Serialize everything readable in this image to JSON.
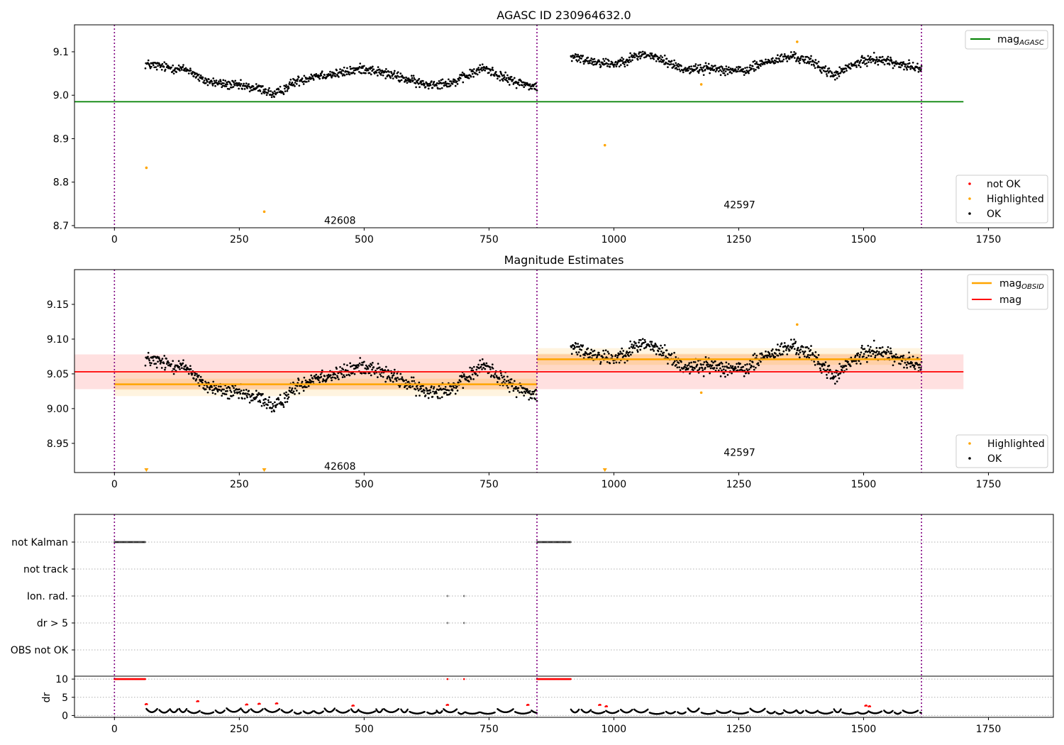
{
  "chart_data": [
    {
      "type": "scatter",
      "title": "AGASC ID 230964632.0",
      "xlim": [
        -80,
        1880
      ],
      "ylim": [
        8.695,
        9.162
      ],
      "xticks": [
        0,
        250,
        500,
        750,
        1000,
        1250,
        1500,
        1750
      ],
      "yticks": [
        8.7,
        8.8,
        8.9,
        9.0,
        9.1
      ],
      "ytick_labels": [
        "8.7",
        "8.8",
        "8.9",
        "9.0",
        "9.1"
      ],
      "obsid_boundaries": [
        0,
        846,
        1616
      ],
      "obsid_labels": [
        {
          "text": "42608",
          "x": 420,
          "y": 8.712
        },
        {
          "text": "42597",
          "x": 1220,
          "y": 8.748
        }
      ],
      "lines": [
        {
          "name": "mag_AGASC",
          "label_main": "mag",
          "label_sub": "AGASC",
          "y": 8.985,
          "x0": -80,
          "x1": 1700,
          "color": "#008000"
        }
      ],
      "legend_lines_position": "upper right",
      "legend_markers_position": "lower right",
      "legend_markers": [
        {
          "label": "not OK",
          "color": "#ff0000"
        },
        {
          "label": "Highlighted",
          "color": "#ffa500"
        },
        {
          "label": "OK",
          "color": "#000000"
        }
      ],
      "ok_points": {
        "color": "#000000",
        "segments": [
          {
            "x0": 62,
            "x1": 846,
            "knots": [
              [
                62,
                9.072
              ],
              [
                100,
                9.065
              ],
              [
                150,
                9.058
              ],
              [
                175,
                9.035
              ],
              [
                210,
                9.027
              ],
              [
                260,
                9.02
              ],
              [
                300,
                9.013
              ],
              [
                320,
                9.0
              ],
              [
                360,
                9.03
              ],
              [
                400,
                9.045
              ],
              [
                450,
                9.05
              ],
              [
                500,
                9.062
              ],
              [
                560,
                9.045
              ],
              [
                620,
                9.025
              ],
              [
                680,
                9.03
              ],
              [
                740,
                9.063
              ],
              [
                790,
                9.035
              ],
              [
                846,
                9.018
              ]
            ],
            "noise": 0.011
          },
          {
            "x0": 914,
            "x1": 1616,
            "knots": [
              [
                914,
                9.088
              ],
              [
                960,
                9.078
              ],
              [
                1000,
                9.072
              ],
              [
                1060,
                9.095
              ],
              [
                1100,
                9.08
              ],
              [
                1140,
                9.06
              ],
              [
                1200,
                9.062
              ],
              [
                1260,
                9.055
              ],
              [
                1300,
                9.075
              ],
              [
                1360,
                9.09
              ],
              [
                1400,
                9.075
              ],
              [
                1440,
                9.045
              ],
              [
                1480,
                9.07
              ],
              [
                1520,
                9.085
              ],
              [
                1580,
                9.07
              ],
              [
                1616,
                9.06
              ]
            ],
            "noise": 0.011
          }
        ]
      },
      "highlighted_points": [
        [
          64,
          8.833
        ],
        [
          300,
          8.732
        ],
        [
          982,
          8.885
        ],
        [
          1175,
          9.025
        ],
        [
          1367,
          9.123
        ]
      ]
    },
    {
      "type": "scatter",
      "title": "Magnitude Estimates",
      "xlim": [
        -80,
        1880
      ],
      "ylim": [
        8.908,
        9.2
      ],
      "xticks": [
        0,
        250,
        500,
        750,
        1000,
        1250,
        1500,
        1750
      ],
      "yticks": [
        8.95,
        9.0,
        9.05,
        9.1,
        9.15
      ],
      "ytick_labels": [
        "8.95",
        "9.00",
        "9.05",
        "9.10",
        "9.15"
      ],
      "obsid_boundaries": [
        0,
        846,
        1616
      ],
      "obsid_labels": [
        {
          "text": "42608",
          "x": 420,
          "y": 8.917
        },
        {
          "text": "42597",
          "x": 1220,
          "y": 8.937
        }
      ],
      "mag_band": {
        "y": 9.053,
        "lo": 9.028,
        "hi": 9.078,
        "x0": -80,
        "x1": 1700,
        "color": "#ff0000"
      },
      "obsid_mags": [
        {
          "x0": 0,
          "x1": 846,
          "y": 9.035,
          "lo": 9.018,
          "hi": 9.052,
          "lo2": 9.027,
          "hi2": 9.043
        },
        {
          "x0": 846,
          "x1": 1616,
          "y": 9.071,
          "lo": 9.055,
          "hi": 9.087,
          "lo2": 9.063,
          "hi2": 9.079
        }
      ],
      "lines": [
        {
          "name": "mag_OBSID",
          "label_main": "mag",
          "label_sub": "OBSID",
          "color": "#ffa500"
        },
        {
          "name": "mag",
          "label_main": "mag",
          "label_sub": "",
          "color": "#ff0000"
        }
      ],
      "legend_lines_position": "upper right",
      "legend_markers_position": "lower right",
      "legend_markers": [
        {
          "label": "Highlighted",
          "color": "#ffa500"
        },
        {
          "label": "OK",
          "color": "#000000"
        }
      ],
      "highlighted_points": [
        [
          1175,
          9.023
        ],
        [
          1367,
          9.121
        ]
      ],
      "offscale_markers": [
        64,
        300,
        982
      ]
    },
    {
      "type": "scatter",
      "xlim": [
        -80,
        1880
      ],
      "flag_rows": [
        {
          "label": "not Kalman",
          "ranges": [
            [
              0,
              62
            ],
            [
              846,
              914
            ]
          ],
          "points": []
        },
        {
          "label": "not track",
          "ranges": [],
          "points": []
        },
        {
          "label": "Ion. rad.",
          "ranges": [],
          "points": [
            667,
            700
          ]
        },
        {
          "label": "dr > 5",
          "ranges": [],
          "points": [
            667,
            700
          ]
        },
        {
          "label": "OBS not OK",
          "ranges": [],
          "points": []
        }
      ],
      "dr": {
        "ylabel": "dr",
        "ylim": [
          -0.5,
          10.8
        ],
        "yticks": [
          0,
          5,
          10
        ],
        "ytick_labels": [
          "0",
          "5",
          "10"
        ],
        "saturated_ranges": [
          [
            0,
            62
          ],
          [
            846,
            914
          ]
        ],
        "saturated_points": [
          667,
          700
        ],
        "red_points": [
          [
            64,
            3.2
          ],
          [
            167,
            4.0
          ],
          [
            265,
            3.1
          ],
          [
            290,
            3.3
          ],
          [
            325,
            3.4
          ],
          [
            478,
            2.8
          ],
          [
            667,
            3.0
          ],
          [
            828,
            3.0
          ],
          [
            972,
            3.0
          ],
          [
            985,
            2.6
          ],
          [
            1505,
            2.8
          ],
          [
            1512,
            2.6
          ]
        ],
        "black_segments": [
          [
            64,
            846
          ],
          [
            914,
            1616
          ]
        ]
      },
      "obsid_boundaries": [
        0,
        846,
        1616
      ],
      "xticks": [
        0,
        250,
        500,
        750,
        1000,
        1250,
        1500,
        1750
      ]
    }
  ]
}
